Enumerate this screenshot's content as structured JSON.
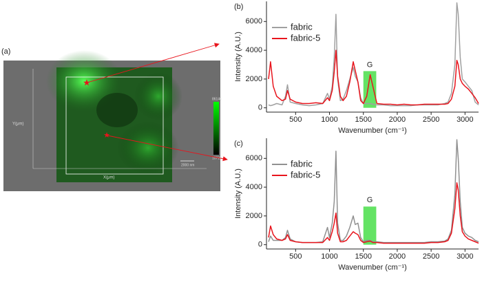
{
  "map": {
    "label": "(a)",
    "x_label": "X(μm)",
    "y_label": "Y(μm)",
    "colorbar_max": 86146,
    "colorbar_min": 10728,
    "scale_bar": "2000 nm"
  },
  "chart_data": [
    {
      "type": "line",
      "label": "(b)",
      "x_label": "Wavenumber (cm⁻¹)",
      "y_label": "Intensity (A.U.)",
      "xlim": [
        70,
        3200
      ],
      "ylim": [
        -300,
        7400
      ],
      "xticks": [
        500,
        1000,
        1500,
        2000,
        2500,
        3000
      ],
      "yticks": [
        0,
        2000,
        4000,
        6000
      ],
      "legend": "upper left",
      "highlight": {
        "label": "G",
        "xrange": [
          1500,
          1690
        ],
        "top": 2550,
        "color": "#3ddc3d"
      },
      "x": [
        100,
        130,
        170,
        220,
        300,
        350,
        380,
        420,
        500,
        600,
        700,
        800,
        900,
        970,
        1000,
        1040,
        1070,
        1095,
        1120,
        1160,
        1200,
        1250,
        1300,
        1350,
        1380,
        1420,
        1460,
        1500,
        1550,
        1600,
        1640,
        1700,
        1800,
        1900,
        2000,
        2100,
        2200,
        2300,
        2400,
        2500,
        2600,
        2700,
        2750,
        2800,
        2850,
        2880,
        2900,
        2930,
        2960,
        3000,
        3050,
        3100,
        3150,
        3200
      ],
      "series": [
        {
          "name": "fabric",
          "color": "#a0a0a0",
          "values": [
            200,
            150,
            200,
            300,
            200,
            800,
            1600,
            400,
            300,
            200,
            150,
            200,
            300,
            1000,
            600,
            1500,
            3500,
            6500,
            2000,
            500,
            600,
            1200,
            2000,
            2800,
            2200,
            1800,
            700,
            300,
            300,
            300,
            250,
            200,
            200,
            150,
            150,
            150,
            150,
            200,
            200,
            200,
            200,
            300,
            400,
            1000,
            3000,
            7300,
            6500,
            3500,
            2000,
            1800,
            1500,
            1200,
            400,
            200
          ]
        },
        {
          "name": "fabric-5",
          "color": "#e8141c",
          "values": [
            2000,
            3200,
            1500,
            800,
            500,
            600,
            1200,
            600,
            400,
            300,
            300,
            350,
            300,
            700,
            500,
            1200,
            2500,
            4000,
            2200,
            800,
            500,
            800,
            1800,
            3200,
            2600,
            1800,
            500,
            300,
            800,
            2300,
            1500,
            300,
            250,
            250,
            200,
            250,
            200,
            200,
            250,
            250,
            250,
            250,
            300,
            600,
            1500,
            3300,
            3000,
            2000,
            1700,
            1500,
            1300,
            1000,
            700,
            300
          ]
        }
      ]
    },
    {
      "type": "line",
      "label": "(c)",
      "x_label": "Wavenumber (cm⁻¹)",
      "y_label": "Intensity (A.U.)",
      "xlim": [
        70,
        3200
      ],
      "ylim": [
        -300,
        7400
      ],
      "xticks": [
        500,
        1000,
        1500,
        2000,
        2500,
        3000
      ],
      "yticks": [
        0,
        2000,
        4000,
        6000
      ],
      "legend": "upper left",
      "highlight": {
        "label": "G",
        "xrange": [
          1500,
          1690
        ],
        "top": 2650,
        "color": "#3ddc3d"
      },
      "x": [
        100,
        130,
        170,
        220,
        300,
        350,
        380,
        420,
        500,
        600,
        700,
        800,
        900,
        970,
        1000,
        1040,
        1070,
        1095,
        1120,
        1160,
        1200,
        1250,
        1300,
        1350,
        1380,
        1420,
        1460,
        1500,
        1550,
        1600,
        1640,
        1700,
        1800,
        1900,
        2000,
        2100,
        2200,
        2300,
        2400,
        2500,
        2600,
        2700,
        2750,
        2800,
        2850,
        2880,
        2900,
        2930,
        2960,
        3000,
        3050,
        3100,
        3150,
        3200
      ],
      "series": [
        {
          "name": "fabric",
          "color": "#909090",
          "values": [
            200,
            600,
            300,
            300,
            300,
            500,
            1000,
            400,
            200,
            150,
            150,
            150,
            200,
            1200,
            500,
            1500,
            3000,
            6500,
            1500,
            300,
            300,
            600,
            1200,
            2000,
            1400,
            1500,
            500,
            200,
            300,
            300,
            200,
            200,
            150,
            150,
            150,
            150,
            150,
            150,
            150,
            200,
            200,
            250,
            400,
            1000,
            3500,
            7300,
            6000,
            3000,
            1200,
            800,
            600,
            500,
            300,
            200
          ]
        },
        {
          "name": "fabric-5",
          "color": "#e8141c",
          "values": [
            500,
            1300,
            700,
            400,
            300,
            400,
            700,
            300,
            200,
            150,
            150,
            150,
            150,
            500,
            300,
            900,
            1500,
            2200,
            800,
            200,
            200,
            300,
            600,
            900,
            800,
            700,
            300,
            150,
            200,
            250,
            150,
            150,
            100,
            100,
            100,
            100,
            100,
            100,
            100,
            150,
            150,
            200,
            300,
            800,
            2500,
            4300,
            3800,
            2000,
            900,
            600,
            400,
            300,
            200,
            100
          ]
        }
      ]
    }
  ]
}
